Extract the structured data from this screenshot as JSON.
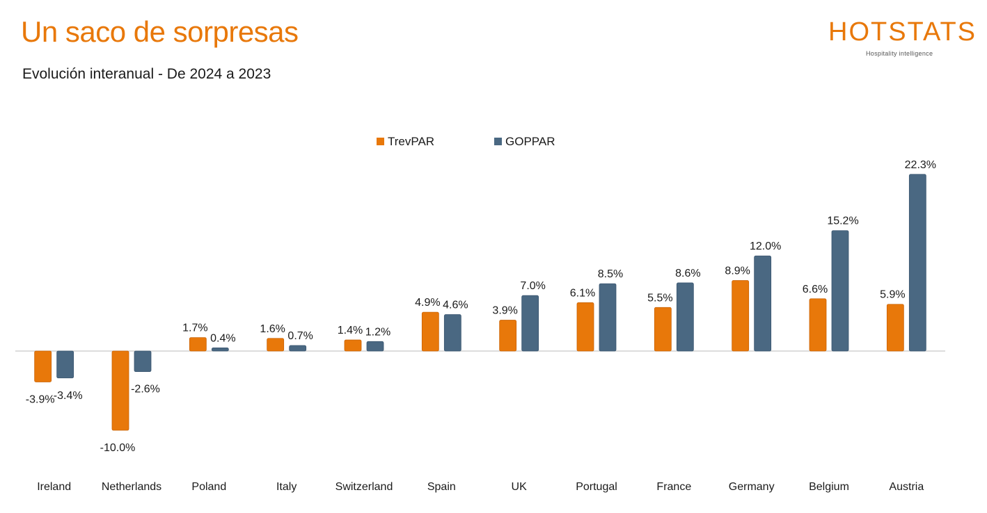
{
  "header": {
    "title": "Un saco de sorpresas",
    "subtitle": "Evolución interanual - De 2024 a 2023"
  },
  "logo": {
    "name": "HOTSTATS",
    "tagline": "Hospitality intelligence"
  },
  "colors": {
    "accent": "#e8780a",
    "trevpar": "#e8780a",
    "goppar": "#4a6882",
    "axis": "#c8c8c8",
    "text": "#1a1a1a"
  },
  "chart_data": {
    "type": "bar",
    "categories": [
      "Ireland",
      "Netherlands",
      "Poland",
      "Italy",
      "Switzerland",
      "Spain",
      "UK",
      "Portugal",
      "France",
      "Germany",
      "Belgium",
      "Austria"
    ],
    "series": [
      {
        "name": "TrevPAR",
        "values": [
          -3.9,
          -10.0,
          1.7,
          1.6,
          1.4,
          4.9,
          3.9,
          6.1,
          5.5,
          8.9,
          6.6,
          5.9
        ],
        "labels": [
          "-3.9%",
          "-10.0%",
          "1.7%",
          "1.6%",
          "1.4%",
          "4.9%",
          "3.9%",
          "6.1%",
          "5.5%",
          "8.9%",
          "6.6%",
          "5.9%"
        ]
      },
      {
        "name": "GOPPAR",
        "values": [
          -3.4,
          -2.6,
          0.4,
          0.7,
          1.2,
          4.6,
          7.0,
          8.5,
          8.6,
          12.0,
          15.2,
          22.3
        ],
        "labels": [
          "-3.4%",
          "-2.6%",
          "0.4%",
          "0.7%",
          "1.2%",
          "4.6%",
          "7.0%",
          "8.5%",
          "8.6%",
          "12.0%",
          "15.2%",
          "22.3%"
        ]
      }
    ],
    "unit": "%",
    "ylim": [
      -13.5,
      23
    ],
    "grid": false,
    "legend": "top-center",
    "title": "",
    "xlabel": "",
    "ylabel": ""
  }
}
